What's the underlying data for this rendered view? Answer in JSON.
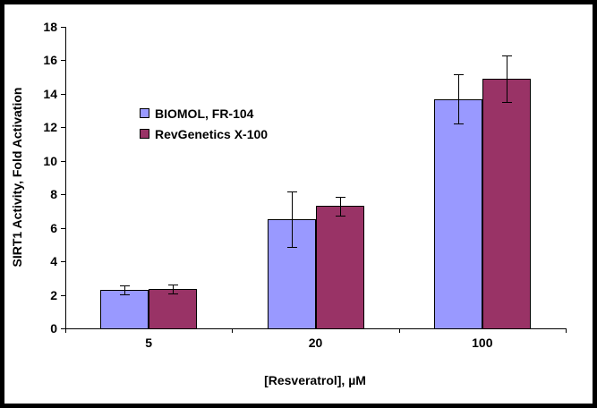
{
  "chart_data": {
    "type": "bar",
    "title": "",
    "xlabel": "[Resveratrol], µM",
    "ylabel": "SIRT1 Activity, Fold Activation",
    "categories": [
      "5",
      "20",
      "100"
    ],
    "series": [
      {
        "name": "BIOMOL, FR-104",
        "color": "#9999FF",
        "values": [
          2.3,
          6.5,
          13.7
        ],
        "errors": [
          0.25,
          1.65,
          1.45
        ]
      },
      {
        "name": "RevGenetics X-100",
        "color": "#993366",
        "values": [
          2.35,
          7.3,
          14.9
        ],
        "errors": [
          0.25,
          0.55,
          1.4
        ]
      }
    ],
    "ylim": [
      0,
      18
    ],
    "yticks": [
      0,
      2,
      4,
      6,
      8,
      10,
      12,
      14,
      16,
      18
    ],
    "grid": false,
    "error_bars": true,
    "legend_position": "inside-top-left",
    "bar_border_color": "#000000",
    "axis_color": "#000000",
    "background_color": "#FFFFFF",
    "frame_color": "#000000"
  }
}
